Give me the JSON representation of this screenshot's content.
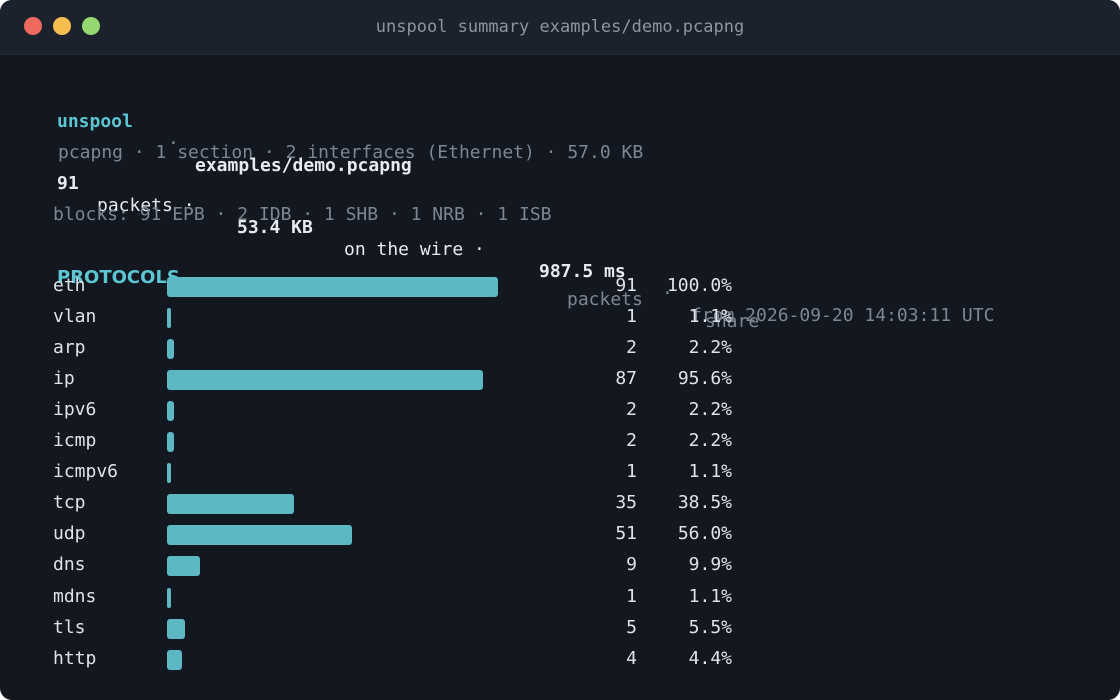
{
  "window": {
    "title": "unspool summary examples/demo.pcapng"
  },
  "header": {
    "app": "unspool",
    "sep": "·",
    "file": "examples/demo.pcapng",
    "format_line": "pcapng · 1 section · 2 interfaces (Ethernet) · 57.0 KB",
    "packets_count": "91",
    "packets_label": "packets ·",
    "bytes_value": "53.4 KB",
    "bytes_label": "on the wire ·",
    "duration_value": "987.5 ms",
    "from_sep": "·",
    "from_text": "from 2026-09-20 14:03:11 UTC",
    "blocks_line": "blocks: 91 EPB · 2 IDB · 1 SHB · 1 NRB · 1 ISB"
  },
  "table": {
    "title": "PROTOCOLS",
    "col_packets": "packets",
    "col_share": "share",
    "rows": [
      {
        "name": "eth",
        "packets": "91",
        "share": "100.0%",
        "fraction": 1.0
      },
      {
        "name": "vlan",
        "packets": "1",
        "share": "1.1%",
        "fraction": 0.011
      },
      {
        "name": "arp",
        "packets": "2",
        "share": "2.2%",
        "fraction": 0.022
      },
      {
        "name": "ip",
        "packets": "87",
        "share": "95.6%",
        "fraction": 0.956
      },
      {
        "name": "ipv6",
        "packets": "2",
        "share": "2.2%",
        "fraction": 0.022
      },
      {
        "name": "icmp",
        "packets": "2",
        "share": "2.2%",
        "fraction": 0.022
      },
      {
        "name": "icmpv6",
        "packets": "1",
        "share": "1.1%",
        "fraction": 0.011
      },
      {
        "name": "tcp",
        "packets": "35",
        "share": "38.5%",
        "fraction": 0.385
      },
      {
        "name": "udp",
        "packets": "51",
        "share": "56.0%",
        "fraction": 0.56
      },
      {
        "name": "dns",
        "packets": "9",
        "share": "9.9%",
        "fraction": 0.099
      },
      {
        "name": "mdns",
        "packets": "1",
        "share": "1.1%",
        "fraction": 0.011
      },
      {
        "name": "tls",
        "packets": "5",
        "share": "5.5%",
        "fraction": 0.055
      },
      {
        "name": "http",
        "packets": "4",
        "share": "4.4%",
        "fraction": 0.044
      }
    ]
  },
  "colors": {
    "bar": "#5bb8c4",
    "accent": "#5cc6d2",
    "background": "#121720"
  }
}
